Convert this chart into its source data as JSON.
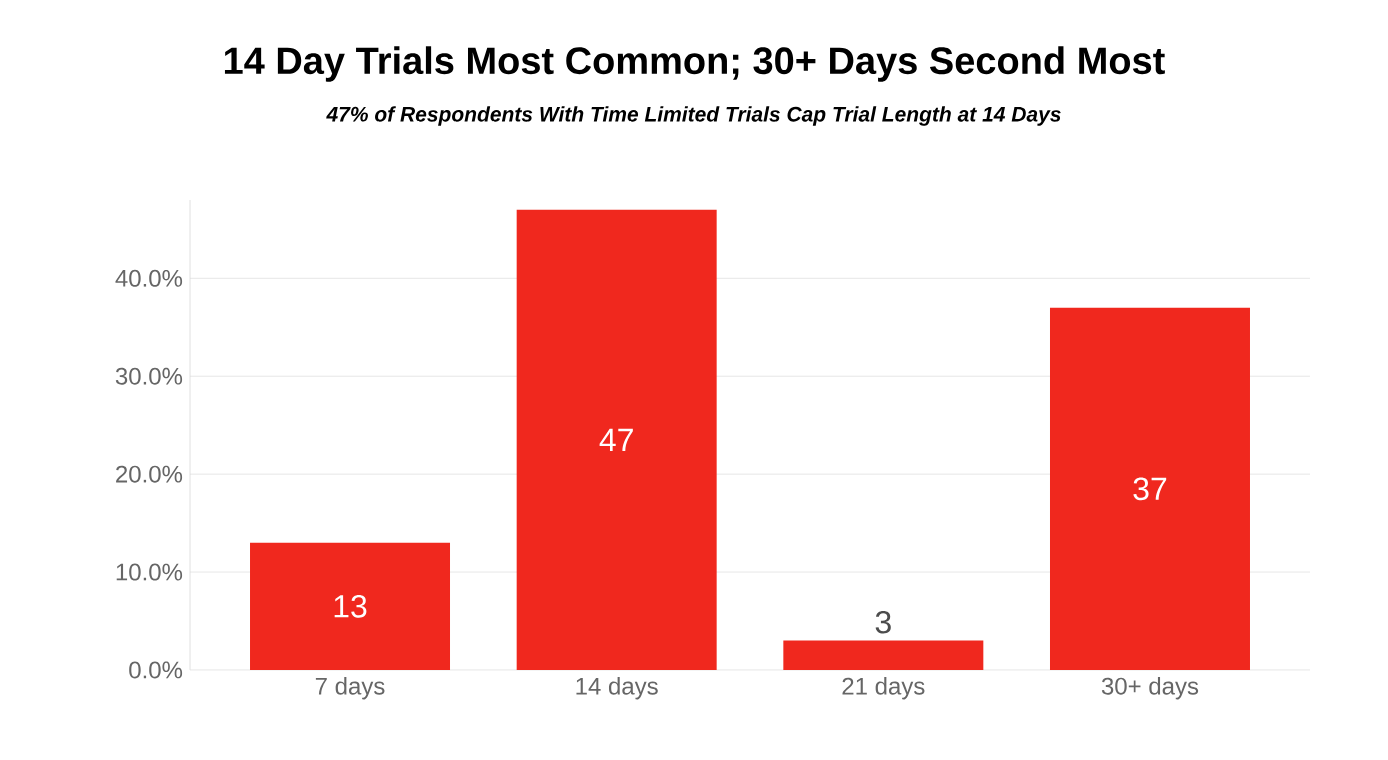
{
  "chart_data": {
    "type": "bar",
    "title": "14 Day Trials Most Common; 30+ Days Second Most",
    "subtitle": "47% of Respondents With Time Limited Trials Cap Trial Length at 14 Days",
    "categories": [
      "7 days",
      "14 days",
      "21 days",
      "30+ days"
    ],
    "values": [
      13,
      47,
      3,
      37
    ],
    "color": "#f0281e",
    "data_labels": true,
    "ylim": [
      0,
      48
    ],
    "yticks": [
      {
        "value": 0,
        "label": "0.0%"
      },
      {
        "value": 10,
        "label": "10.0%"
      },
      {
        "value": 20,
        "label": "20.0%"
      },
      {
        "value": 30,
        "label": "30.0%"
      },
      {
        "value": 40,
        "label": "40.0%"
      }
    ],
    "grid": "y"
  }
}
